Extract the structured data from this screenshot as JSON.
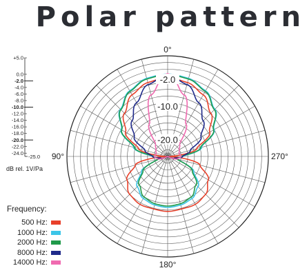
{
  "title": "Polar pattern",
  "chart_data": {
    "type": "polar",
    "angle_labels": {
      "a0": "0°",
      "a90": "90°",
      "a180": "180°",
      "a270": "270°"
    },
    "radial_range_db": [
      -25,
      5
    ],
    "ring_labels": [
      "-2.0",
      "-10.0",
      "-20.0"
    ],
    "ring_label_values": [
      -2,
      -10,
      -20
    ],
    "scale_ticks": [
      {
        "label": "+5.0",
        "value": 5,
        "bold": false
      },
      {
        "label": "0.0",
        "value": 0,
        "bold": false
      },
      {
        "label": "-2.0",
        "value": -2,
        "bold": true
      },
      {
        "label": "-4.0",
        "value": -4,
        "bold": false
      },
      {
        "label": "-6.0",
        "value": -6,
        "bold": false
      },
      {
        "label": "-8.0",
        "value": -8,
        "bold": false
      },
      {
        "label": "-10.0",
        "value": -10,
        "bold": true
      },
      {
        "label": "-12.0",
        "value": -12,
        "bold": false
      },
      {
        "label": "-14.0",
        "value": -14,
        "bold": false
      },
      {
        "label": "-16.0",
        "value": -16,
        "bold": false
      },
      {
        "label": "-18.0",
        "value": -18,
        "bold": false
      },
      {
        "label": "-20.0",
        "value": -20,
        "bold": true
      },
      {
        "label": "-22.0",
        "value": -22,
        "bold": false
      },
      {
        "label": "-24.0",
        "value": -24,
        "bold": false
      },
      {
        "label": "-25.0",
        "value": -25,
        "bold": false
      }
    ],
    "unit_label": "dB rel. 1V/Pa",
    "legend_title": "Frequency:",
    "series": [
      {
        "name": "500 Hz:",
        "color": "#e8402a",
        "angles": [
          0,
          15,
          30,
          45,
          60,
          75,
          90,
          105,
          120,
          135,
          150,
          165,
          180
        ],
        "values": [
          -1.5,
          -2.2,
          -3.8,
          -6.8,
          -10.5,
          -16,
          -24.5,
          -15,
          -11,
          -9,
          -8.5,
          -8.8,
          -8.6
        ]
      },
      {
        "name": "1000 Hz:",
        "color": "#3cc5e8",
        "angles": [
          0,
          15,
          30,
          45,
          60,
          75,
          90,
          105,
          120,
          135,
          150,
          165,
          180
        ],
        "values": [
          -0.4,
          -0.9,
          -2.4,
          -5.1,
          -9,
          -14.5,
          -20.5,
          -22.5,
          -16,
          -12.2,
          -10.5,
          -10,
          -9.8
        ]
      },
      {
        "name": "2000 Hz:",
        "color": "#1f9a4a",
        "angles": [
          0,
          15,
          30,
          45,
          60,
          75,
          90,
          105,
          120,
          135,
          150,
          165,
          180
        ],
        "values": [
          -0.6,
          -1.1,
          -2.6,
          -5.3,
          -9.2,
          -14.8,
          -21,
          -22.5,
          -16.5,
          -13,
          -11,
          -10.4,
          -10.2
        ]
      },
      {
        "name": "8000 Hz:",
        "color": "#1f2a8a",
        "angles": [
          0,
          15,
          30,
          45,
          60,
          75,
          90,
          105,
          120,
          135,
          150,
          165,
          180
        ],
        "values": [
          -0.8,
          -2.8,
          -6.5,
          -10,
          -13.5,
          -18,
          -20.5,
          -23,
          -25,
          -25,
          -25,
          -25,
          -25
        ]
      },
      {
        "name": "14000 Hz:",
        "color": "#f06ab0",
        "angles": [
          0,
          15,
          30,
          45,
          60,
          75,
          90,
          105,
          120,
          135,
          150,
          165,
          180
        ],
        "values": [
          -0.3,
          -6,
          -14,
          -20,
          -21,
          -21.5,
          -21,
          -22,
          -25,
          -25,
          -25,
          -25,
          -25
        ]
      }
    ]
  }
}
